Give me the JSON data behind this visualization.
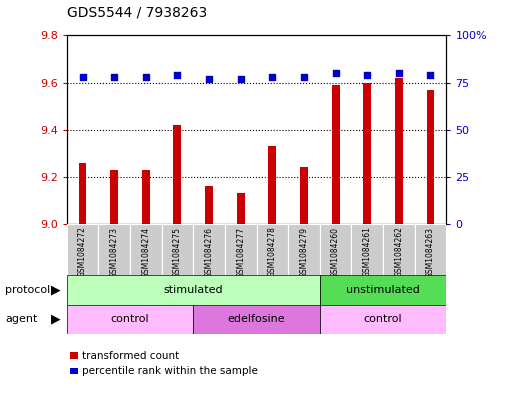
{
  "title": "GDS5544 / 7938263",
  "samples": [
    "GSM1084272",
    "GSM1084273",
    "GSM1084274",
    "GSM1084275",
    "GSM1084276",
    "GSM1084277",
    "GSM1084278",
    "GSM1084279",
    "GSM1084260",
    "GSM1084261",
    "GSM1084262",
    "GSM1084263"
  ],
  "transformed_counts": [
    9.26,
    9.23,
    9.23,
    9.42,
    9.16,
    9.13,
    9.33,
    9.24,
    9.59,
    9.6,
    9.62,
    9.57
  ],
  "percentile_ranks": [
    78,
    78,
    78,
    79,
    77,
    77,
    78,
    78,
    80,
    79,
    80,
    79
  ],
  "bar_color": "#cc0000",
  "dot_color": "#0000cc",
  "ylim_left": [
    9.0,
    9.8
  ],
  "ylim_right": [
    0,
    100
  ],
  "yticks_left": [
    9.0,
    9.2,
    9.4,
    9.6,
    9.8
  ],
  "yticks_right": [
    0,
    25,
    50,
    75,
    100
  ],
  "ytick_labels_right": [
    "0",
    "25",
    "50",
    "75",
    "100%"
  ],
  "protocol_groups": [
    {
      "label": "stimulated",
      "start": 0,
      "end": 8,
      "color": "#bbffbb"
    },
    {
      "label": "unstimulated",
      "start": 8,
      "end": 12,
      "color": "#55dd55"
    }
  ],
  "agent_groups": [
    {
      "label": "control",
      "start": 0,
      "end": 4,
      "color": "#ffbbff"
    },
    {
      "label": "edelfosine",
      "start": 4,
      "end": 8,
      "color": "#dd77dd"
    },
    {
      "label": "control",
      "start": 8,
      "end": 12,
      "color": "#ffbbff"
    }
  ],
  "legend_bar_label": "transformed count",
  "legend_dot_label": "percentile rank within the sample",
  "protocol_label": "protocol",
  "agent_label": "agent",
  "background_color": "#ffffff",
  "plot_bg_color": "#ffffff",
  "tick_label_color_left": "#cc0000",
  "tick_label_color_right": "#0000cc",
  "sample_bg_color": "#cccccc",
  "bar_width": 0.25
}
